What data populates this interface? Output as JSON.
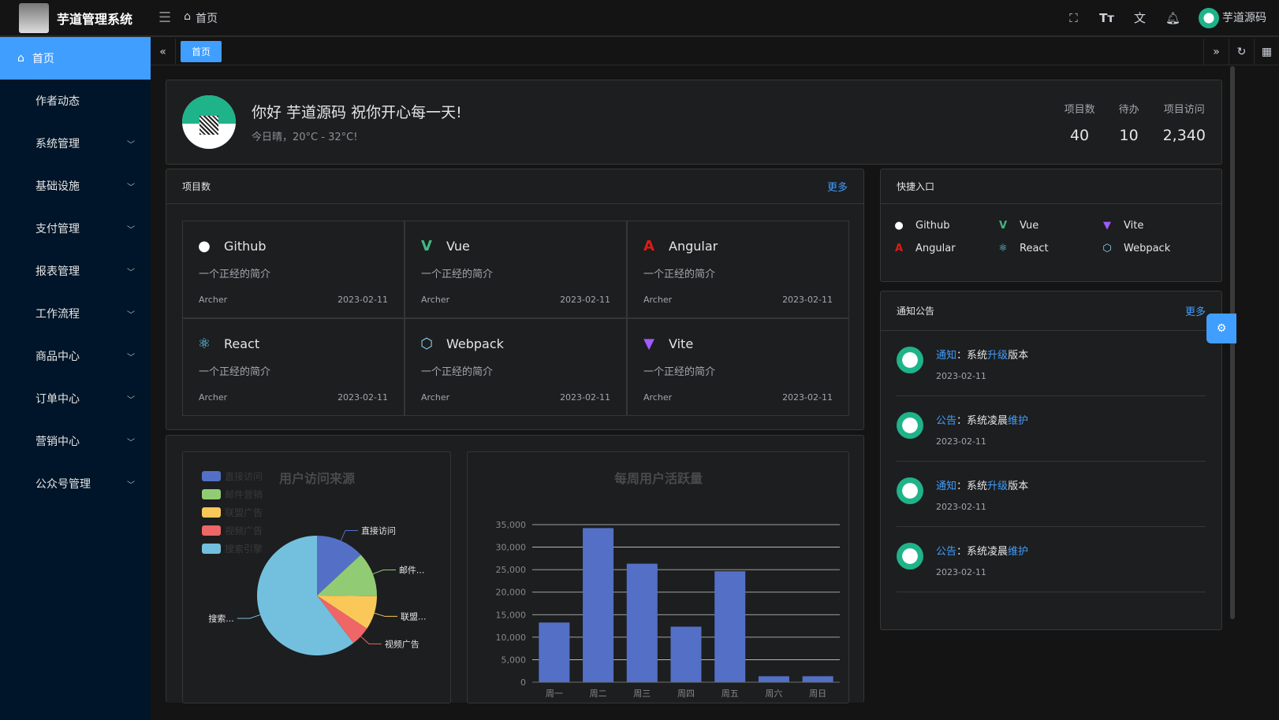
{
  "app": {
    "title": "芋道管理系统",
    "user": "芋道源码"
  },
  "breadcrumb": {
    "home": "首页"
  },
  "sidebar": {
    "items": [
      {
        "label": "首页",
        "active": true
      },
      {
        "label": "作者动态"
      },
      {
        "label": "系统管理",
        "chev": true
      },
      {
        "label": "基础设施",
        "chev": true
      },
      {
        "label": "支付管理",
        "chev": true
      },
      {
        "label": "报表管理",
        "chev": true
      },
      {
        "label": "工作流程",
        "chev": true
      },
      {
        "label": "商品中心",
        "chev": true
      },
      {
        "label": "订单中心",
        "chev": true
      },
      {
        "label": "营销中心",
        "chev": true
      },
      {
        "label": "公众号管理",
        "chev": true
      }
    ]
  },
  "tabs": [
    {
      "label": "首页",
      "active": true
    }
  ],
  "welcome": {
    "greeting": "你好 芋道源码 祝你开心每一天!",
    "weather": "今日晴，20°C - 32°C!",
    "stats": [
      {
        "label": "项目数",
        "value": "40"
      },
      {
        "label": "待办",
        "value": "10"
      },
      {
        "label": "项目访问",
        "value": "2,340"
      }
    ]
  },
  "projects": {
    "title": "项目数",
    "more": "更多",
    "items": [
      {
        "name": "Github",
        "icon": "github-icon",
        "color": "#ffffff",
        "desc": "一个正经的简介",
        "author": "Archer",
        "date": "2023-02-11"
      },
      {
        "name": "Vue",
        "icon": "vue-icon",
        "color": "#42b883",
        "desc": "一个正经的简介",
        "author": "Archer",
        "date": "2023-02-11"
      },
      {
        "name": "Angular",
        "icon": "angular-icon",
        "color": "#dd1b16",
        "desc": "一个正经的简介",
        "author": "Archer",
        "date": "2023-02-11"
      },
      {
        "name": "React",
        "icon": "react-icon",
        "color": "#61dafb",
        "desc": "一个正经的简介",
        "author": "Archer",
        "date": "2023-02-11"
      },
      {
        "name": "Webpack",
        "icon": "webpack-icon",
        "color": "#8ed6fb",
        "desc": "一个正经的简介",
        "author": "Archer",
        "date": "2023-02-11"
      },
      {
        "name": "Vite",
        "icon": "vite-icon",
        "color": "#a259ff",
        "desc": "一个正经的简介",
        "author": "Archer",
        "date": "2023-02-11"
      }
    ]
  },
  "quick": {
    "title": "快捷入口",
    "items": [
      {
        "name": "Github",
        "icon": "github-icon",
        "color": "#ffffff"
      },
      {
        "name": "Vue",
        "icon": "vue-icon",
        "color": "#42b883"
      },
      {
        "name": "Vite",
        "icon": "vite-icon",
        "color": "#a259ff"
      },
      {
        "name": "Angular",
        "icon": "angular-icon",
        "color": "#dd1b16"
      },
      {
        "name": "React",
        "icon": "react-icon",
        "color": "#61dafb"
      },
      {
        "name": "Webpack",
        "icon": "webpack-icon",
        "color": "#8ed6fb"
      }
    ]
  },
  "notice": {
    "title": "通知公告",
    "more": "更多",
    "items": [
      {
        "type": "通知",
        "sep": "：",
        "pre": "系统",
        "hl": "升级",
        "post": "版本",
        "date": "2023-02-11"
      },
      {
        "type": "公告",
        "sep": "：",
        "pre": "系统凌晨",
        "hl": "维护",
        "post": "",
        "date": "2023-02-11"
      },
      {
        "type": "通知",
        "sep": "：",
        "pre": "系统",
        "hl": "升级",
        "post": "版本",
        "date": "2023-02-11"
      },
      {
        "type": "公告",
        "sep": "：",
        "pre": "系统凌晨",
        "hl": "维护",
        "post": "",
        "date": "2023-02-11"
      }
    ]
  },
  "chart_data": [
    {
      "type": "pie",
      "title": "用户访问来源",
      "legend": "top-left",
      "categories": [
        "直接访问",
        "邮件营销",
        "联盟广告",
        "视频广告",
        "搜索引擎"
      ],
      "labels": [
        "直接访问",
        "邮件...",
        "联盟...",
        "视频广告",
        "搜索..."
      ],
      "values": [
        335,
        310,
        234,
        135,
        1548
      ],
      "colors": [
        "#5470c6",
        "#91cc75",
        "#fac858",
        "#ee6666",
        "#73c0de"
      ]
    },
    {
      "type": "bar",
      "title": "每周用户活跃量",
      "categories": [
        "周一",
        "周二",
        "周三",
        "周四",
        "周五",
        "周六",
        "周日"
      ],
      "values": [
        13253,
        34235,
        26321,
        12340,
        24643,
        1322,
        1324
      ],
      "ylim": [
        0,
        35000
      ],
      "yticks": [
        "0",
        "5,000",
        "10,000",
        "15,000",
        "20,000",
        "25,000",
        "30,000",
        "35,000"
      ],
      "grid": true,
      "color": "#5470c6"
    }
  ]
}
